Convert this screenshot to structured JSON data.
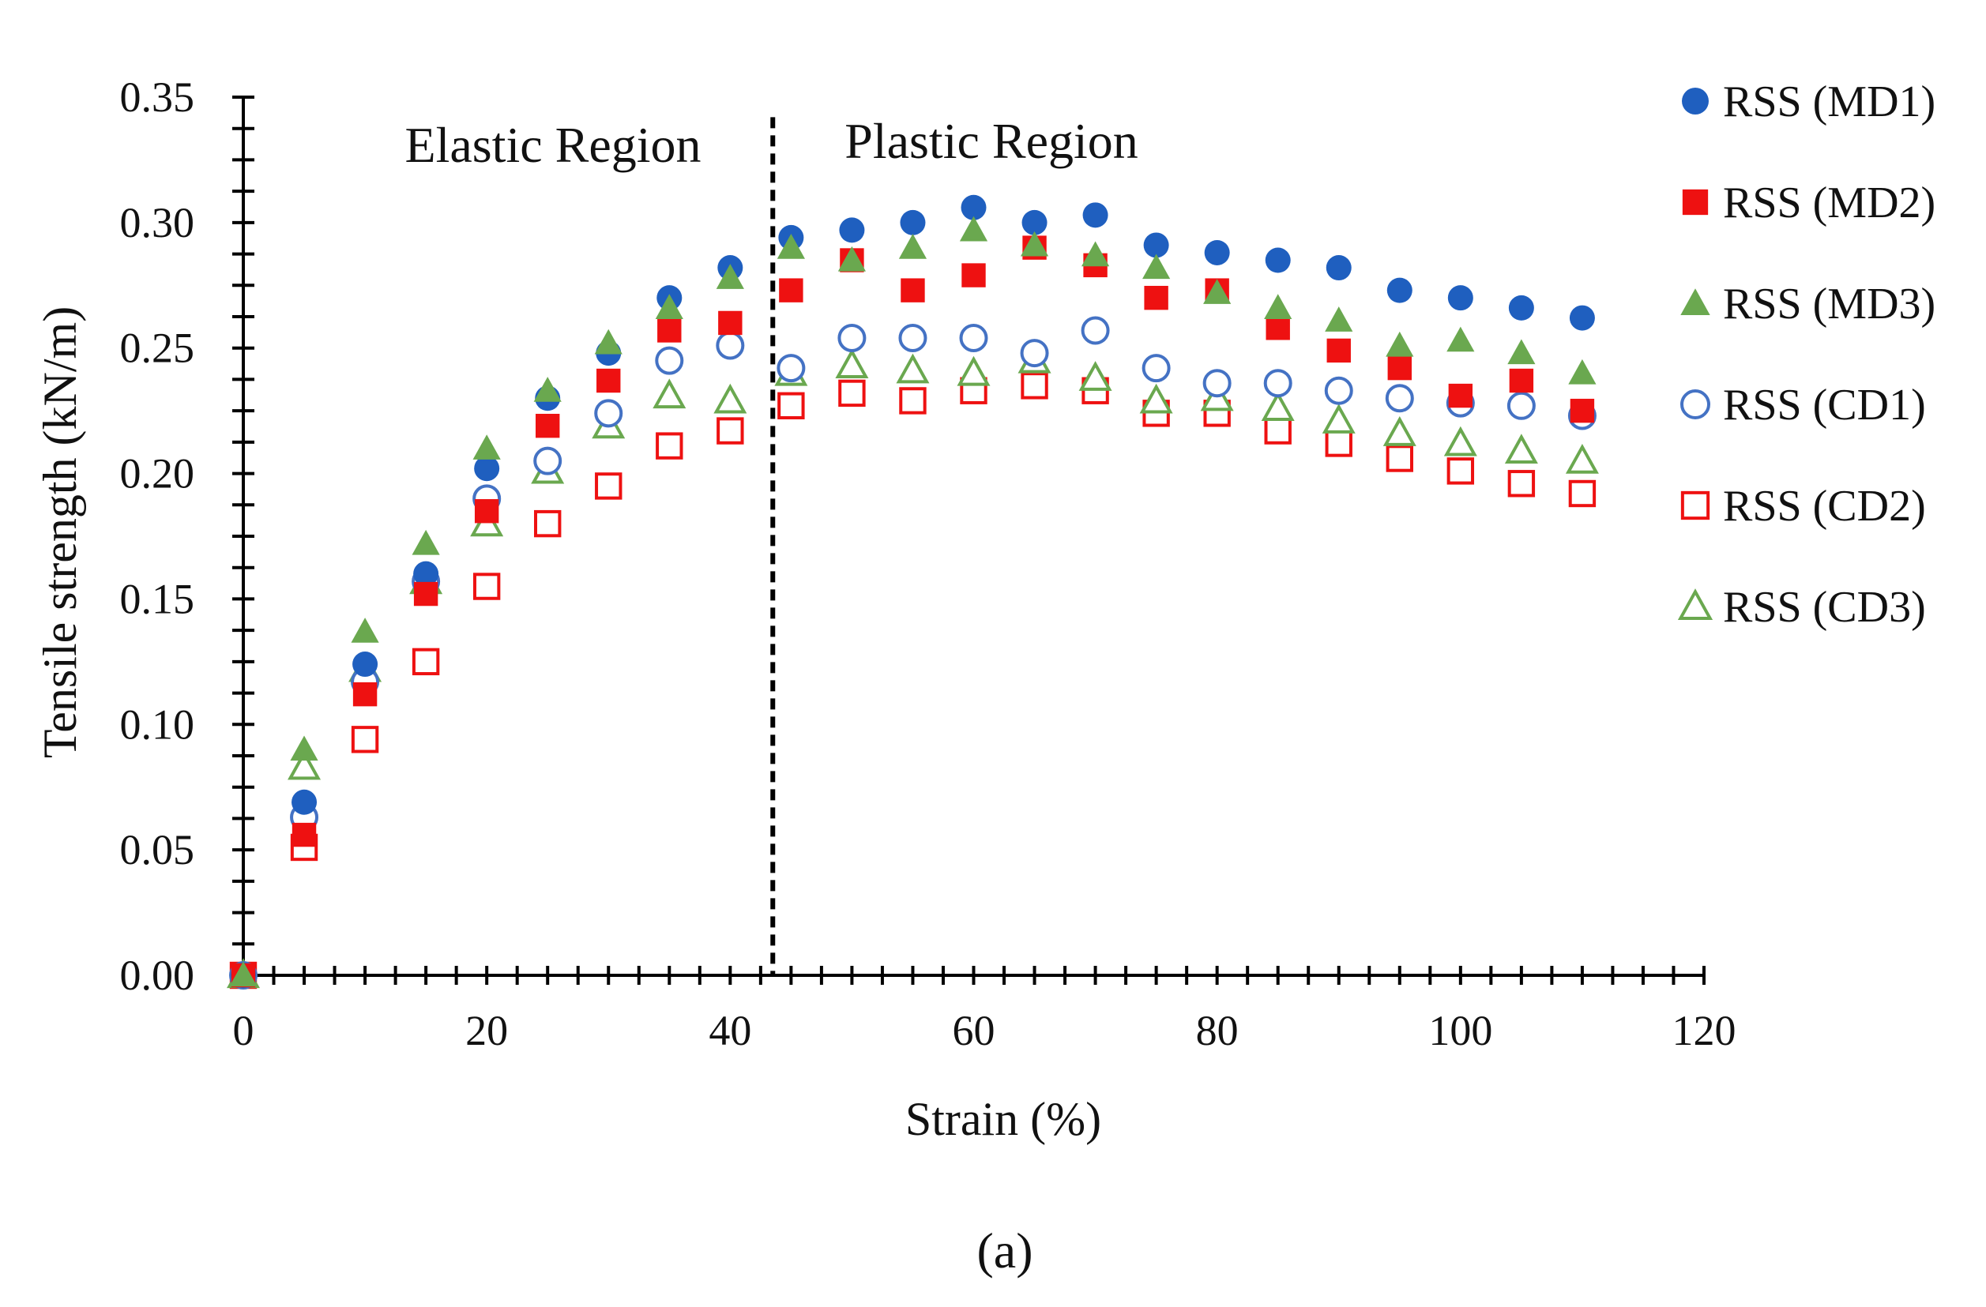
{
  "chart_data": {
    "type": "scatter",
    "xlabel": "Strain (%)",
    "ylabel": "Tensile strength (kN/m)",
    "xlim": [
      0,
      120
    ],
    "ylim": [
      0,
      0.35
    ],
    "xticks": [
      "0",
      "20",
      "40",
      "60",
      "80",
      "100",
      "120"
    ],
    "yticks": [
      "0.00",
      "0.05",
      "0.10",
      "0.15",
      "0.20",
      "0.25",
      "0.30",
      "0.35"
    ],
    "divider_x": 43.5,
    "annotations": {
      "elastic": "Elastic Region",
      "plastic": "Plastic Region"
    },
    "caption": "(a)",
    "legend_position": "right",
    "series": [
      {
        "name": "RSS (MD1)",
        "marker": "circle",
        "filled": true,
        "color": "#1f5fbf",
        "x": [
          0,
          5,
          10,
          15,
          20,
          25,
          30,
          35,
          40,
          45,
          50,
          55,
          60,
          65,
          70,
          75,
          80,
          85,
          90,
          95,
          100,
          105,
          110
        ],
        "y": [
          0,
          0.069,
          0.124,
          0.16,
          0.202,
          0.23,
          0.248,
          0.27,
          0.282,
          0.294,
          0.297,
          0.3,
          0.306,
          0.3,
          0.303,
          0.291,
          0.288,
          0.285,
          0.282,
          0.273,
          0.27,
          0.266,
          0.262
        ]
      },
      {
        "name": "RSS (MD2)",
        "marker": "square",
        "filled": true,
        "color": "#ee1111",
        "x": [
          0,
          5,
          10,
          15,
          20,
          25,
          30,
          35,
          40,
          45,
          50,
          55,
          60,
          65,
          70,
          75,
          80,
          85,
          90,
          95,
          100,
          105,
          110
        ],
        "y": [
          0,
          0.056,
          0.112,
          0.152,
          0.185,
          0.219,
          0.237,
          0.257,
          0.26,
          0.273,
          0.285,
          0.273,
          0.279,
          0.29,
          0.283,
          0.27,
          0.273,
          0.258,
          0.249,
          0.242,
          0.231,
          0.237,
          0.225
        ]
      },
      {
        "name": "RSS (MD3)",
        "marker": "triangle",
        "filled": true,
        "color": "#6aa84f",
        "x": [
          0,
          5,
          10,
          15,
          20,
          25,
          30,
          35,
          40,
          45,
          50,
          55,
          60,
          65,
          70,
          75,
          80,
          85,
          90,
          95,
          100,
          105,
          110
        ],
        "y": [
          0,
          0.09,
          0.137,
          0.172,
          0.21,
          0.233,
          0.252,
          0.266,
          0.278,
          0.29,
          0.285,
          0.29,
          0.297,
          0.291,
          0.287,
          0.282,
          0.272,
          0.266,
          0.261,
          0.251,
          0.253,
          0.248,
          0.24
        ]
      },
      {
        "name": "RSS (CD1)",
        "marker": "circle",
        "filled": false,
        "color": "#4472c4",
        "x": [
          0,
          5,
          10,
          15,
          20,
          25,
          30,
          35,
          40,
          45,
          50,
          55,
          60,
          65,
          70,
          75,
          80,
          85,
          90,
          95,
          100,
          105,
          110
        ],
        "y": [
          0,
          0.063,
          0.117,
          0.157,
          0.19,
          0.205,
          0.224,
          0.245,
          0.251,
          0.242,
          0.254,
          0.254,
          0.254,
          0.248,
          0.257,
          0.242,
          0.236,
          0.236,
          0.233,
          0.23,
          0.228,
          0.227,
          0.223
        ]
      },
      {
        "name": "RSS (CD2)",
        "marker": "square",
        "filled": false,
        "color": "#ee1111",
        "x": [
          0,
          5,
          10,
          15,
          20,
          25,
          30,
          35,
          40,
          45,
          50,
          55,
          60,
          65,
          70,
          75,
          80,
          85,
          90,
          95,
          100,
          105,
          110
        ],
        "y": [
          0,
          0.051,
          0.094,
          0.125,
          0.155,
          0.18,
          0.195,
          0.211,
          0.217,
          0.227,
          0.232,
          0.229,
          0.233,
          0.235,
          0.233,
          0.224,
          0.224,
          0.217,
          0.212,
          0.206,
          0.201,
          0.196,
          0.192
        ]
      },
      {
        "name": "RSS (CD3)",
        "marker": "triangle",
        "filled": false,
        "color": "#6aa84f",
        "x": [
          0,
          5,
          10,
          15,
          20,
          25,
          30,
          35,
          40,
          45,
          50,
          55,
          60,
          65,
          70,
          75,
          80,
          85,
          90,
          95,
          100,
          105,
          110
        ],
        "y": [
          0,
          0.083,
          0.122,
          0.157,
          0.18,
          0.201,
          0.219,
          0.231,
          0.229,
          0.24,
          0.243,
          0.241,
          0.24,
          0.245,
          0.238,
          0.229,
          0.23,
          0.226,
          0.221,
          0.216,
          0.212,
          0.209,
          0.205
        ]
      }
    ]
  }
}
